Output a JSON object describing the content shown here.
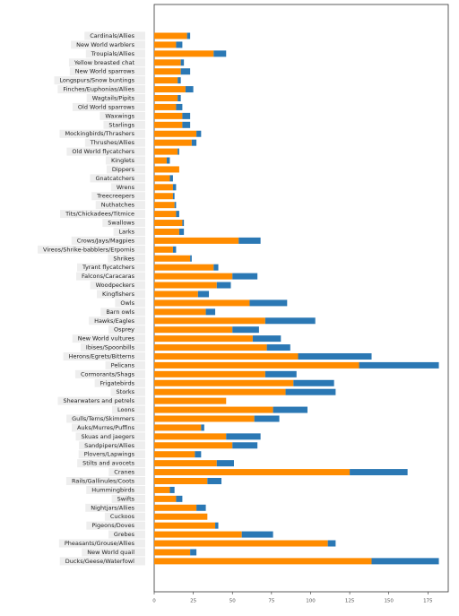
{
  "chart_data": {
    "type": "stacked-bar",
    "orientation": "horizontal",
    "categories": [
      "Cardinals/Allies",
      "New World warblers",
      "Troupials/Allies",
      "Yellow breasted chat",
      "New World sparrows",
      "Longspurs/Snow buntings",
      "Finches/Euphonias/Allies",
      "Wagtails/Pipits",
      "Old World sparrows",
      "Waxwings",
      "Starlings",
      "Mockingbirds/Thrashers",
      "Thrushes/Allies",
      "Old World flycatchers",
      "Kinglets",
      "Dippers",
      "Gnatcatchers",
      "Wrens",
      "Treecreepers",
      "Nuthatches",
      "Tits/Chickadees/Titmice",
      "Swallows",
      "Larks",
      "Crows/Jays/Magpies",
      "Vireos/Shrike-babblers/Erpornis",
      "Shrikes",
      "Tyrant flycatchers",
      "Falcons/Caracaras",
      "Woodpeckers",
      "Kingfishers",
      "Owls",
      "Barn owls",
      "Hawks/Eagles",
      "Osprey",
      "New World vultures",
      "Ibises/Spoonbills",
      "Herons/Egrets/Bitterns",
      "Pelicans",
      "Cormorants/Shags",
      "Frigatebirds",
      "Storks",
      "Shearwaters and petrels",
      "Loons",
      "Gulls/Terns/Skimmers",
      "Auks/Murres/Puffins",
      "Skuas and jaegers",
      "Sandpipers/Allies",
      "Plovers/Lapwings",
      "Stilts and avocets",
      "Cranes",
      "Rails/Gallinules/Coots",
      "Hummingbirds",
      "Swifts",
      "Nightjars/Allies",
      "Cuckoos",
      "Pigeons/Doves",
      "Grebes",
      "Pheasants/Grouse/Allies",
      "New World quail",
      "Ducks/Geese/Waterfowl"
    ],
    "series": [
      {
        "color": "#ff8c00",
        "values": [
          21,
          14,
          38,
          17,
          17,
          15,
          20,
          15,
          14,
          18,
          18,
          27,
          24,
          15,
          8,
          16,
          10,
          12,
          12,
          13,
          14,
          18,
          16,
          54,
          12,
          23,
          38,
          50,
          40,
          28,
          61,
          33,
          71,
          50,
          63,
          72,
          92,
          131,
          71,
          89,
          84,
          46,
          76,
          64,
          30,
          46,
          50,
          26,
          40,
          125,
          34,
          10,
          14,
          27,
          34,
          39,
          56,
          111,
          23,
          139
        ]
      },
      {
        "color": "#2b78b4",
        "values": [
          2,
          4,
          8,
          2,
          6,
          2,
          5,
          2,
          4,
          5,
          5,
          3,
          3,
          1,
          2,
          0,
          2,
          2,
          1,
          1,
          2,
          1,
          3,
          14,
          2,
          1,
          3,
          16,
          9,
          7,
          24,
          6,
          32,
          17,
          18,
          15,
          47,
          51,
          20,
          26,
          32,
          0,
          22,
          16,
          2,
          22,
          16,
          4,
          11,
          37,
          9,
          3,
          4,
          6,
          0,
          2,
          20,
          5,
          4,
          43
        ]
      }
    ],
    "xlim": [
      0,
      188
    ],
    "xticks": [
      0,
      25,
      50,
      75,
      100,
      125,
      150,
      175
    ]
  }
}
